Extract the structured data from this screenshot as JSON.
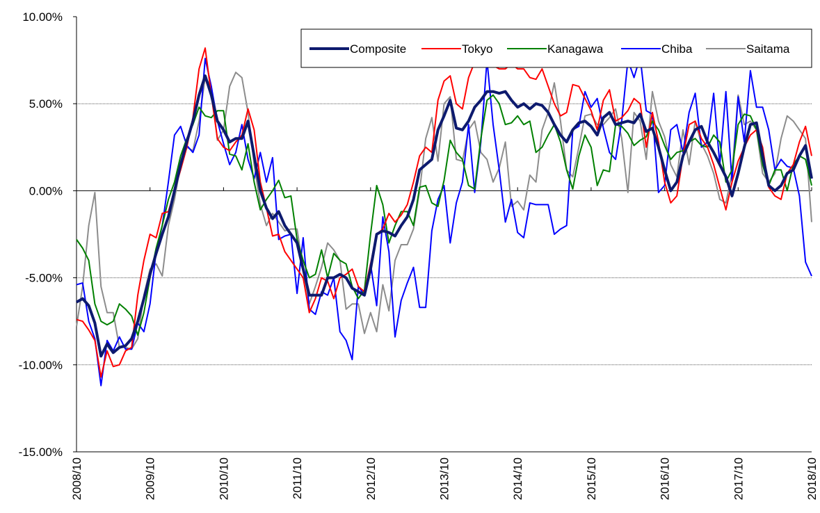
{
  "chart_data": {
    "type": "line",
    "categories": [
      "2008/10",
      null,
      null,
      null,
      null,
      null,
      null,
      null,
      null,
      null,
      null,
      null,
      "2009/10",
      null,
      null,
      null,
      null,
      null,
      null,
      null,
      null,
      null,
      null,
      null,
      "2010/10",
      null,
      null,
      null,
      null,
      null,
      null,
      null,
      null,
      null,
      null,
      null,
      "2011/10",
      null,
      null,
      null,
      null,
      null,
      null,
      null,
      null,
      null,
      null,
      null,
      "2012/10",
      null,
      null,
      null,
      null,
      null,
      null,
      null,
      null,
      null,
      null,
      null,
      "2013/10",
      null,
      null,
      null,
      null,
      null,
      null,
      null,
      null,
      null,
      null,
      null,
      "2014/10",
      null,
      null,
      null,
      null,
      null,
      null,
      null,
      null,
      null,
      null,
      null,
      "2015/10",
      null,
      null,
      null,
      null,
      null,
      null,
      null,
      null,
      null,
      null,
      null,
      "2016/10",
      null,
      null,
      null,
      null,
      null,
      null,
      null,
      null,
      null,
      null,
      null,
      "2017/10",
      null,
      null,
      null,
      null,
      null,
      null,
      null,
      null,
      null,
      null,
      null,
      "2018/10"
    ],
    "series": [
      {
        "name": "Composite",
        "color": "#0d1a6e",
        "values": [
          -6.4,
          -6.2,
          -6.6,
          -7.6,
          -9.5,
          -8.8,
          -9.3,
          -9.0,
          -8.9,
          -8.5,
          -7.5,
          -6.2,
          -4.8,
          -3.6,
          -2.5,
          -1.5,
          0.0,
          1.5,
          2.8,
          4.0,
          5.5,
          6.6,
          5.5,
          4.0,
          3.5,
          2.8,
          3.0,
          3.0,
          4.0,
          2.0,
          0.0,
          -1.0,
          -1.6,
          -1.2,
          -2.0,
          -2.5,
          -3.0,
          -4.5,
          -6.0,
          -6.0,
          -6.0,
          -5.0,
          -5.0,
          -4.8,
          -5.0,
          -5.6,
          -5.8,
          -6.0,
          -4.5,
          -2.5,
          -2.3,
          -2.4,
          -2.6,
          -2.0,
          -1.5,
          -0.5,
          1.2,
          1.5,
          1.8,
          3.5,
          4.3,
          5.2,
          3.6,
          3.5,
          4.0,
          4.8,
          5.2,
          5.7,
          5.7,
          5.6,
          5.7,
          5.2,
          4.8,
          5.0,
          4.7,
          5.0,
          4.9,
          4.5,
          3.8,
          3.2,
          2.8,
          3.5,
          3.9,
          4.0,
          3.7,
          3.2,
          4.2,
          4.5,
          3.8,
          3.9,
          4.0,
          3.9,
          4.4,
          3.4,
          3.6,
          2.5,
          1.2,
          0.0,
          0.5,
          2.0,
          2.8,
          3.5,
          3.7,
          2.8,
          2.2,
          1.5,
          0.8,
          -0.3,
          1.0,
          2.5,
          3.8,
          3.9,
          2.0,
          0.3,
          0.0,
          0.3,
          1.0,
          1.2,
          2.0,
          2.6,
          0.7
        ]
      },
      {
        "name": "Tokyo",
        "color": "#ff0000",
        "values": [
          -7.4,
          -7.5,
          -8.0,
          -8.6,
          -10.7,
          -9.2,
          -10.1,
          -10.0,
          -9.2,
          -9.0,
          -6.0,
          -4.0,
          -2.5,
          -2.7,
          -1.3,
          -1.2,
          0.0,
          1.2,
          2.5,
          4.2,
          7.0,
          8.2,
          5.5,
          3.0,
          2.5,
          2.3,
          2.8,
          3.2,
          4.7,
          3.5,
          0.5,
          -1.0,
          -2.6,
          -2.5,
          -3.5,
          -4.0,
          -4.5,
          -5.0,
          -7.0,
          -6.2,
          -5.0,
          -5.2,
          -6.2,
          -5.0,
          -4.8,
          -4.5,
          -5.5,
          -5.8,
          -4.2,
          -2.5,
          -2.2,
          -1.3,
          -1.8,
          -1.4,
          -0.8,
          0.5,
          2.0,
          2.5,
          2.2,
          5.2,
          6.3,
          6.6,
          5.0,
          4.7,
          6.5,
          7.4,
          7.5,
          7.6,
          7.2,
          7.0,
          7.0,
          7.3,
          7.0,
          7.0,
          6.5,
          6.4,
          7.0,
          6.0,
          5.0,
          4.3,
          4.5,
          6.1,
          6.0,
          5.3,
          4.6,
          3.5,
          5.2,
          5.8,
          4.0,
          4.2,
          4.6,
          5.3,
          5.0,
          2.5,
          4.5,
          2.8,
          0.5,
          -0.7,
          -0.3,
          2.0,
          3.8,
          4.0,
          3.0,
          2.5,
          1.5,
          0.2,
          -1.1,
          0.5,
          1.7,
          2.5,
          3.2,
          3.5,
          2.5,
          0.2,
          -0.3,
          -0.5,
          1.0,
          1.5,
          2.8,
          3.7,
          2.0
        ]
      },
      {
        "name": "Kanagawa",
        "color": "#008000",
        "values": [
          -2.8,
          -3.3,
          -4.0,
          -6.5,
          -7.5,
          -7.7,
          -7.5,
          -6.5,
          -6.8,
          -7.2,
          -8.3,
          -7.0,
          -5.0,
          -3.3,
          -2.0,
          -0.5,
          0.5,
          2.0,
          3.0,
          3.8,
          4.8,
          4.3,
          4.2,
          4.6,
          4.6,
          2.1,
          2.0,
          1.2,
          2.7,
          0.5,
          -1.1,
          -0.5,
          0.0,
          0.6,
          -0.4,
          -0.3,
          -2.8,
          -4.0,
          -5.0,
          -4.8,
          -3.4,
          -5.0,
          -3.6,
          -4.0,
          -4.2,
          -5.5,
          -6.2,
          -5.7,
          -2.5,
          0.3,
          -0.8,
          -3.0,
          -2.0,
          -1.2,
          -1.2,
          -2.0,
          0.2,
          0.3,
          -0.7,
          -0.9,
          0.6,
          2.9,
          2.2,
          1.8,
          0.3,
          0.1,
          3.0,
          5.2,
          5.5,
          5.0,
          3.8,
          3.9,
          4.3,
          3.8,
          4.0,
          2.2,
          2.5,
          3.2,
          3.8,
          2.8,
          1.2,
          0.1,
          2.0,
          3.2,
          2.5,
          0.3,
          1.2,
          1.1,
          3.8,
          3.7,
          3.3,
          2.6,
          2.9,
          3.1,
          4.0,
          3.5,
          2.6,
          1.8,
          2.2,
          2.3,
          2.8,
          3.0,
          2.6,
          2.5,
          3.2,
          2.8,
          0.5,
          1.2,
          3.8,
          4.4,
          4.3,
          3.5,
          1.5,
          0.3,
          1.2,
          1.2,
          0.0,
          1.5,
          2.0,
          1.8,
          0.3
        ]
      },
      {
        "name": "Chiba",
        "color": "#0000ff",
        "values": [
          -5.4,
          -5.3,
          -7.5,
          -8.5,
          -11.2,
          -8.6,
          -9.2,
          -8.4,
          -9.1,
          -9.1,
          -7.6,
          -8.1,
          -6.5,
          -3.5,
          -2.0,
          0.5,
          3.2,
          3.7,
          2.6,
          2.2,
          3.2,
          7.6,
          6.0,
          4.0,
          2.7,
          1.5,
          2.2,
          3.8,
          1.8,
          0.7,
          2.2,
          0.5,
          1.9,
          -2.8,
          -2.6,
          -2.5,
          -5.9,
          -2.7,
          -6.8,
          -7.1,
          -5.8,
          -6.0,
          -5.0,
          -8.1,
          -8.6,
          -9.7,
          -5.5,
          -6.0,
          -4.2,
          -6.6,
          -1.5,
          -3.5,
          -8.4,
          -6.3,
          -5.3,
          -4.4,
          -6.7,
          -6.7,
          -2.3,
          -0.5,
          0.3,
          -3.0,
          -0.7,
          0.5,
          3.8,
          -0.1,
          2.8,
          7.5,
          3.8,
          1.2,
          -1.8,
          -0.5,
          -2.4,
          -2.7,
          -0.7,
          -0.8,
          -0.8,
          -0.8,
          -2.5,
          -2.2,
          -2.0,
          3.5,
          3.7,
          5.7,
          4.8,
          5.3,
          3.6,
          2.2,
          1.8,
          4.0,
          7.5,
          6.5,
          7.7,
          4.6,
          4.4,
          -0.1,
          0.3,
          3.5,
          3.8,
          2.2,
          4.5,
          5.6,
          2.5,
          2.8,
          5.6,
          1.5,
          5.7,
          0.5,
          5.4,
          2.8,
          6.9,
          4.8,
          4.8,
          3.5,
          1.2,
          1.8,
          1.4,
          1.3,
          -0.3,
          -4.1,
          -4.9
        ]
      },
      {
        "name": "Saitama",
        "color": "#8c8c8c",
        "values": [
          -7.8,
          -5.5,
          -2.0,
          -0.1,
          -5.5,
          -7.0,
          -7.0,
          -9.0,
          -9.0,
          -9.1,
          -8.5,
          -6.0,
          -4.5,
          -4.2,
          -4.9,
          -2.0,
          -0.5,
          1.5,
          2.5,
          2.3,
          4.0,
          6.5,
          6.0,
          2.9,
          3.5,
          6.0,
          6.8,
          6.5,
          4.5,
          1.5,
          -0.8,
          -2.0,
          -1.3,
          -1.8,
          -2.3,
          -2.2,
          -2.2,
          -4.5,
          -6.5,
          -5.5,
          -4.4,
          -3.0,
          -3.4,
          -4.0,
          -6.8,
          -6.5,
          -6.5,
          -8.2,
          -7.0,
          -8.1,
          -5.4,
          -6.9,
          -4.0,
          -3.1,
          -3.1,
          -2.2,
          0.0,
          3.0,
          4.2,
          1.7,
          5.0,
          5.4,
          1.8,
          1.7,
          3.5,
          4.0,
          2.2,
          1.8,
          0.5,
          1.3,
          2.8,
          -0.9,
          -0.6,
          -1.1,
          0.9,
          0.5,
          3.5,
          4.5,
          6.2,
          4.0,
          1.2,
          0.8,
          2.5,
          4.3,
          4.4,
          3.8,
          3.8,
          4.2,
          4.7,
          3.0,
          -0.1,
          4.5,
          4.0,
          1.8,
          5.7,
          4.0,
          3.1,
          1.5,
          0.8,
          3.5,
          1.5,
          4.0,
          2.7,
          2.0,
          1.0,
          -0.5,
          -0.7,
          1.0,
          5.5,
          3.8,
          4.0,
          3.5,
          1.0,
          0.5,
          1.0,
          3.0,
          4.3,
          4.0,
          3.5,
          3.0,
          -1.8
        ]
      }
    ],
    "ylim": [
      -15,
      10
    ],
    "yticks": [
      {
        "value": -15,
        "label": "-15.00%"
      },
      {
        "value": -10,
        "label": "-10.00%"
      },
      {
        "value": -5,
        "label": "-5.00%"
      },
      {
        "value": 0,
        "label": "0.00%"
      },
      {
        "value": 5,
        "label": "5.00%"
      },
      {
        "value": 10,
        "label": "10.00%"
      }
    ],
    "grid": true,
    "legend": "top-right"
  }
}
